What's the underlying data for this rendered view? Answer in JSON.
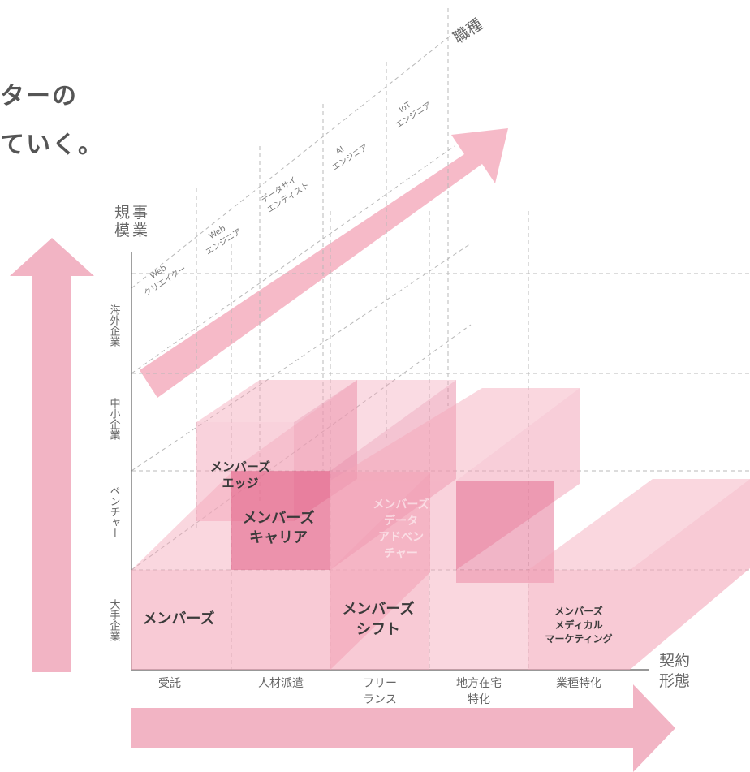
{
  "headline": {
    "line1": "ターの",
    "line2": "ていく。"
  },
  "axes": {
    "scale_title": [
      "規",
      "模",
      "事",
      "業"
    ],
    "contract_title": [
      "契約",
      "形態"
    ],
    "job_title": "職種"
  },
  "scale_levels": [
    "海外企業",
    "中小企業",
    "ベンチャー",
    "大手企業"
  ],
  "contract_types": [
    {
      "lines": [
        "受託"
      ]
    },
    {
      "lines": [
        "人材派遣"
      ]
    },
    {
      "lines": [
        "フリー",
        "ランス"
      ]
    },
    {
      "lines": [
        "地方在宅",
        "特化"
      ]
    },
    {
      "lines": [
        "業種特化"
      ]
    }
  ],
  "job_types": [
    {
      "lines": [
        "Web",
        "クリエイター"
      ]
    },
    {
      "lines": [
        "Web",
        "エンジニア"
      ]
    },
    {
      "lines": [
        "データサイ",
        "エンティスト"
      ]
    },
    {
      "lines": [
        "AI",
        "エンジニア"
      ]
    },
    {
      "lines": [
        "IoT",
        "エンジニア"
      ]
    }
  ],
  "products": [
    {
      "id": "members",
      "lines": [
        "メンバーズ"
      ]
    },
    {
      "id": "edge",
      "lines": [
        "メンバーズ",
        "エッジ"
      ]
    },
    {
      "id": "career",
      "lines": [
        "メンバーズ",
        "キャリア"
      ]
    },
    {
      "id": "data",
      "lines": [
        "メンバーズ",
        "データ",
        "アドベン",
        "チャー"
      ]
    },
    {
      "id": "shift",
      "lines": [
        "メンバーズ",
        "シフト"
      ]
    },
    {
      "id": "medical",
      "lines": [
        "メンバーズ",
        "メディカル",
        "マーケティング"
      ]
    }
  ],
  "colors": {
    "pink": "#f3a6b9",
    "pink_dark": "#e05a82",
    "grid": "#b8b8b8",
    "text": "#555555"
  }
}
